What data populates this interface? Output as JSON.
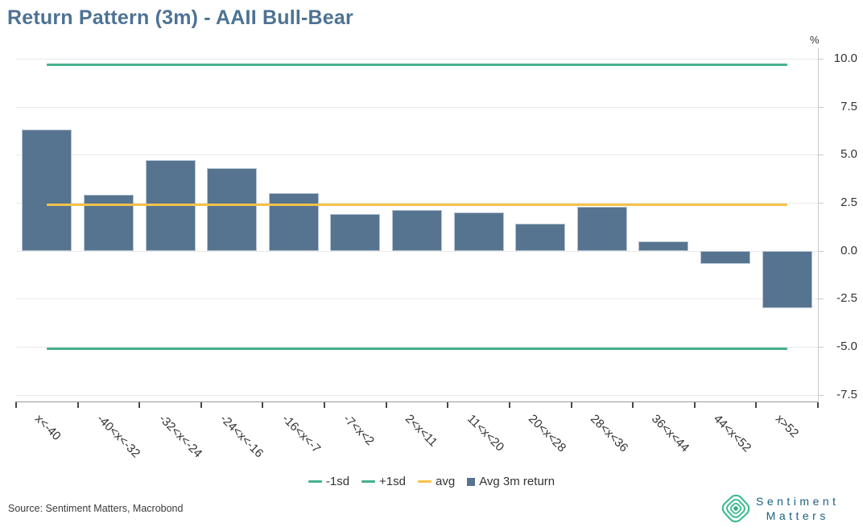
{
  "title": "Return Pattern (3m) - AAII Bull-Bear",
  "unit_label": "%",
  "source_note": "Source: Sentiment Matters, Macrobond",
  "colors": {
    "title": "#4d7294",
    "bar_fill": "#56748f",
    "bar_border": "#b7c4d4",
    "sd_line": "#45b08c",
    "avg_line": "#f6c24a",
    "gridline": "#e9e9e9",
    "axis_text": "#333333",
    "logo_green": "#3cbc8e",
    "logo_text": "#1a617e"
  },
  "chart_data": {
    "type": "bar",
    "title": "Return Pattern (3m) - AAII Bull-Bear",
    "xlabel": "",
    "ylabel": "%",
    "categories": [
      "x<-40",
      "-40<x<-32",
      "-32<x<-24",
      "-24<x<-16",
      "-16<x<-7",
      "-7<x<2",
      "2<x<11",
      "11<x<20",
      "20<x<28",
      "28<x<36",
      "36<x<44",
      "44<x<52",
      "x>52"
    ],
    "series": [
      {
        "name": "Avg 3m return",
        "values": [
          6.3,
          2.9,
          4.7,
          4.3,
          3.0,
          1.9,
          2.1,
          2.0,
          1.4,
          2.3,
          0.5,
          -0.7,
          -3.0
        ]
      }
    ],
    "reference_lines": [
      {
        "name": "-1sd",
        "value": -5.1,
        "color": "#45b08c"
      },
      {
        "name": "+1sd",
        "value": 9.7,
        "color": "#45b08c"
      },
      {
        "name": "avg",
        "value": 2.4,
        "color": "#f6c24a"
      }
    ],
    "yticks": [
      10.0,
      7.5,
      5.0,
      2.5,
      0.0,
      -2.5,
      -5.0,
      -7.5
    ],
    "ytick_labels": [
      "10.0",
      "7.5",
      "5.0",
      "2.5",
      "0.0",
      "-2.5",
      "-5.0",
      "-7.5"
    ],
    "ylim": [
      -8.2,
      10.6
    ],
    "grid": true,
    "legend_position": "bottom"
  },
  "legend": {
    "items": [
      {
        "label": "-1sd",
        "swatch": "line",
        "color": "#45b08c"
      },
      {
        "label": "+1sd",
        "swatch": "line",
        "color": "#45b08c"
      },
      {
        "label": "avg",
        "swatch": "line",
        "color": "#f6c24a"
      },
      {
        "label": "Avg 3m return",
        "swatch": "square",
        "color": "#56748f"
      }
    ]
  },
  "logo": {
    "line1": "Sentiment",
    "line2": "Matters"
  }
}
